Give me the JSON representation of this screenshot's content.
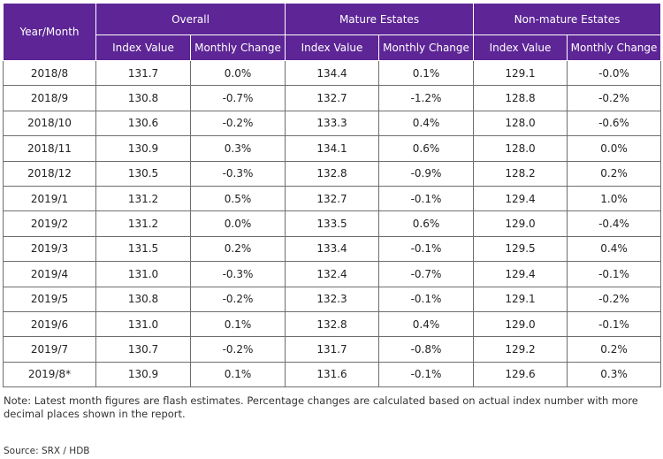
{
  "table": {
    "header_top": [
      "Year/Month",
      "Overall",
      "Mature Estates",
      "Non-mature Estates"
    ],
    "header_sub": [
      "Index Value",
      "Monthly Change",
      "Index Value",
      "Monthly Change",
      "Index Value",
      "Monthly Change"
    ]
  },
  "chart_data": {
    "type": "table",
    "columns": [
      "Year/Month",
      "Overall Index Value",
      "Overall Monthly Change",
      "Mature Estates Index Value",
      "Mature Estates Monthly Change",
      "Non-mature Estates Index Value",
      "Non-mature Estates Monthly Change"
    ],
    "rows": [
      [
        "2018/8",
        "131.7",
        "0.0%",
        "134.4",
        "0.1%",
        "129.1",
        "-0.0%"
      ],
      [
        "2018/9",
        "130.8",
        "-0.7%",
        "132.7",
        "-1.2%",
        "128.8",
        "-0.2%"
      ],
      [
        "2018/10",
        "130.6",
        "-0.2%",
        "133.3",
        "0.4%",
        "128.0",
        "-0.6%"
      ],
      [
        "2018/11",
        "130.9",
        "0.3%",
        "134.1",
        "0.6%",
        "128.0",
        "0.0%"
      ],
      [
        "2018/12",
        "130.5",
        "-0.3%",
        "132.8",
        "-0.9%",
        "128.2",
        "0.2%"
      ],
      [
        "2019/1",
        "131.2",
        "0.5%",
        "132.7",
        "-0.1%",
        "129.4",
        "1.0%"
      ],
      [
        "2019/2",
        "131.2",
        "0.0%",
        "133.5",
        "0.6%",
        "129.0",
        "-0.4%"
      ],
      [
        "2019/3",
        "131.5",
        "0.2%",
        "133.4",
        "-0.1%",
        "129.5",
        "0.4%"
      ],
      [
        "2019/4",
        "131.0",
        "-0.3%",
        "132.4",
        "-0.7%",
        "129.4",
        "-0.1%"
      ],
      [
        "2019/5",
        "130.8",
        "-0.2%",
        "132.3",
        "-0.1%",
        "129.1",
        "-0.2%"
      ],
      [
        "2019/6",
        "131.0",
        "0.1%",
        "132.8",
        "0.4%",
        "129.0",
        "-0.1%"
      ],
      [
        "2019/7",
        "130.7",
        "-0.2%",
        "131.7",
        "-0.8%",
        "129.2",
        "0.2%"
      ],
      [
        "2019/8*",
        "130.9",
        "0.1%",
        "131.6",
        "-0.1%",
        "129.6",
        "0.3%"
      ]
    ]
  },
  "note": "Note: Latest month figures are flash estimates. Percentage changes are calculated based on actual index number with more decimal places shown in the report.",
  "source": "Source: SRX / HDB",
  "colors": {
    "header_bg": "#5d2596",
    "header_text": "#ffffff",
    "border": "#6e6e6e"
  }
}
